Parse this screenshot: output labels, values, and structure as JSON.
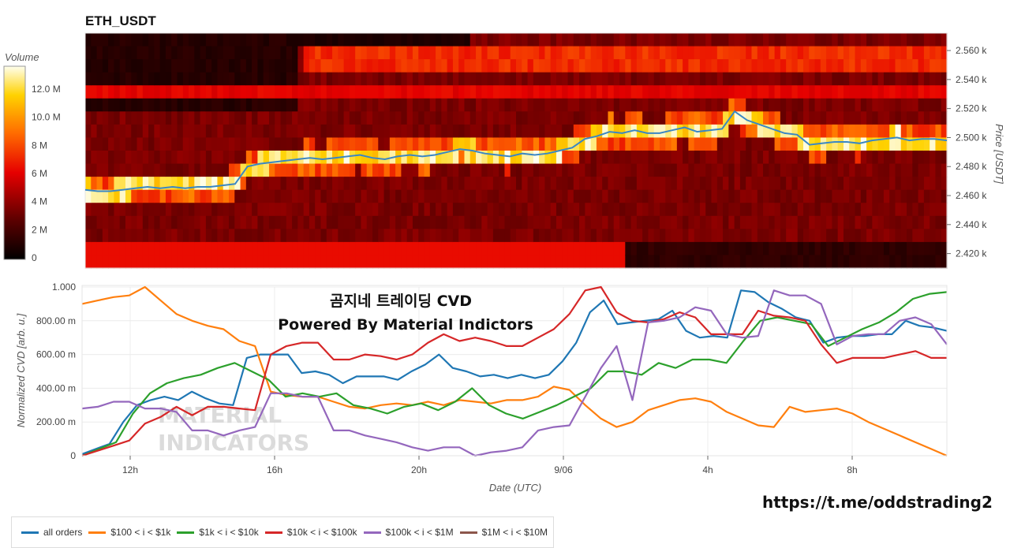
{
  "title": "ETH_USDT",
  "overlay": {
    "line1": "곰지네 트레이딩 CVD",
    "line2": "Powered By Material Indictors"
  },
  "url": "https://t.me/oddstrading2",
  "watermark": {
    "line1": "MATERIAL",
    "line2": "INDICATORS"
  },
  "colorbar": {
    "label": "Volume",
    "ticks": [
      "12.0 M",
      "10.0 M",
      "8 M",
      "6 M",
      "4 M",
      "2 M",
      "0"
    ]
  },
  "chart_data": [
    {
      "type": "heatmap",
      "title": "ETH_USDT",
      "ylabel": "Price [USDT]",
      "yticks": [
        "2.560 k",
        "2.540 k",
        "2.520 k",
        "2.500 k",
        "2.480 k",
        "2.460 k",
        "2.440 k",
        "2.420 k"
      ],
      "price_line": [
        2464,
        2463,
        2463,
        2464,
        2465,
        2466,
        2465,
        2466,
        2465,
        2466,
        2466,
        2467,
        2468,
        2480,
        2482,
        2483,
        2484,
        2485,
        2486,
        2485,
        2486,
        2487,
        2488,
        2486,
        2485,
        2487,
        2488,
        2487,
        2488,
        2490,
        2492,
        2491,
        2489,
        2488,
        2487,
        2489,
        2488,
        2489,
        2491,
        2493,
        2499,
        2501,
        2504,
        2503,
        2505,
        2503,
        2503,
        2505,
        2507,
        2504,
        2505,
        2506,
        2518,
        2512,
        2509,
        2506,
        2503,
        2502,
        2495,
        2496,
        2497,
        2497,
        2496,
        2498,
        2499,
        2500,
        2498,
        2499,
        2499,
        2498
      ]
    },
    {
      "type": "line",
      "xlabel": "Date (UTC)",
      "ylabel": "Normalized CVD [arb. u.]",
      "xticks": [
        "12h",
        "16h",
        "20h",
        "9/06",
        "4h",
        "8h"
      ],
      "yticks": [
        "1.000",
        "800.00 m",
        "600.00 m",
        "400.00 m",
        "200.00 m",
        "0"
      ],
      "ylim": [
        0,
        1
      ],
      "series": [
        {
          "name": "all orders",
          "color": "#1f77b4",
          "values": [
            0.01,
            0.04,
            0.07,
            0.2,
            0.3,
            0.33,
            0.35,
            0.33,
            0.38,
            0.34,
            0.31,
            0.3,
            0.58,
            0.6,
            0.6,
            0.6,
            0.49,
            0.5,
            0.48,
            0.43,
            0.47,
            0.47,
            0.47,
            0.45,
            0.5,
            0.54,
            0.6,
            0.52,
            0.5,
            0.47,
            0.48,
            0.46,
            0.48,
            0.46,
            0.48,
            0.56,
            0.67,
            0.85,
            0.92,
            0.78,
            0.79,
            0.8,
            0.81,
            0.86,
            0.74,
            0.7,
            0.71,
            0.7,
            0.98,
            0.97,
            0.91,
            0.87,
            0.82,
            0.8,
            0.67,
            0.7,
            0.71,
            0.71,
            0.72,
            0.72,
            0.8,
            0.77,
            0.76,
            0.74
          ]
        },
        {
          "name": "$100 < i < $1k",
          "color": "#ff7f0e",
          "values": [
            0.9,
            0.92,
            0.94,
            0.95,
            1.0,
            0.92,
            0.84,
            0.8,
            0.77,
            0.75,
            0.68,
            0.65,
            0.38,
            0.36,
            0.35,
            0.35,
            0.32,
            0.29,
            0.28,
            0.3,
            0.31,
            0.3,
            0.32,
            0.3,
            0.33,
            0.32,
            0.31,
            0.33,
            0.33,
            0.35,
            0.41,
            0.39,
            0.3,
            0.22,
            0.17,
            0.2,
            0.27,
            0.3,
            0.33,
            0.34,
            0.32,
            0.26,
            0.22,
            0.18,
            0.17,
            0.29,
            0.26,
            0.27,
            0.28,
            0.25,
            0.2,
            0.16,
            0.12,
            0.08,
            0.04,
            0.0
          ]
        },
        {
          "name": "$1k < i < $10k",
          "color": "#2ca02c",
          "values": [
            0.0,
            0.04,
            0.08,
            0.25,
            0.37,
            0.43,
            0.46,
            0.48,
            0.52,
            0.55,
            0.5,
            0.45,
            0.35,
            0.37,
            0.35,
            0.37,
            0.3,
            0.28,
            0.25,
            0.29,
            0.31,
            0.27,
            0.32,
            0.4,
            0.3,
            0.25,
            0.22,
            0.26,
            0.3,
            0.35,
            0.4,
            0.5,
            0.5,
            0.48,
            0.55,
            0.52,
            0.57,
            0.57,
            0.55,
            0.68,
            0.8,
            0.82,
            0.8,
            0.78,
            0.65,
            0.7,
            0.75,
            0.79,
            0.85,
            0.93,
            0.96,
            0.97
          ]
        },
        {
          "name": "$10k < i < $100k",
          "color": "#d62728",
          "values": [
            0.0,
            0.03,
            0.06,
            0.09,
            0.19,
            0.23,
            0.29,
            0.24,
            0.29,
            0.29,
            0.28,
            0.27,
            0.6,
            0.65,
            0.67,
            0.67,
            0.57,
            0.57,
            0.6,
            0.59,
            0.57,
            0.6,
            0.67,
            0.72,
            0.68,
            0.7,
            0.68,
            0.65,
            0.65,
            0.7,
            0.75,
            0.84,
            0.98,
            1.0,
            0.85,
            0.8,
            0.79,
            0.81,
            0.85,
            0.82,
            0.72,
            0.72,
            0.72,
            0.86,
            0.83,
            0.82,
            0.8,
            0.66,
            0.55,
            0.58,
            0.58,
            0.58,
            0.6,
            0.62,
            0.58,
            0.58
          ]
        },
        {
          "name": "$100k < i < $1M",
          "color": "#9467bd",
          "values": [
            0.28,
            0.29,
            0.32,
            0.32,
            0.28,
            0.28,
            0.26,
            0.15,
            0.15,
            0.12,
            0.15,
            0.17,
            0.37,
            0.37,
            0.35,
            0.35,
            0.15,
            0.15,
            0.12,
            0.1,
            0.08,
            0.05,
            0.03,
            0.05,
            0.05,
            0.0,
            0.02,
            0.03,
            0.05,
            0.15,
            0.17,
            0.18,
            0.35,
            0.52,
            0.65,
            0.33,
            0.79,
            0.8,
            0.82,
            0.88,
            0.86,
            0.72,
            0.7,
            0.71,
            0.98,
            0.95,
            0.95,
            0.9,
            0.66,
            0.71,
            0.72,
            0.72,
            0.8,
            0.82,
            0.78,
            0.66
          ]
        },
        {
          "name": "$1M < i < $10M",
          "color": "#8c564b",
          "values": []
        }
      ]
    }
  ]
}
